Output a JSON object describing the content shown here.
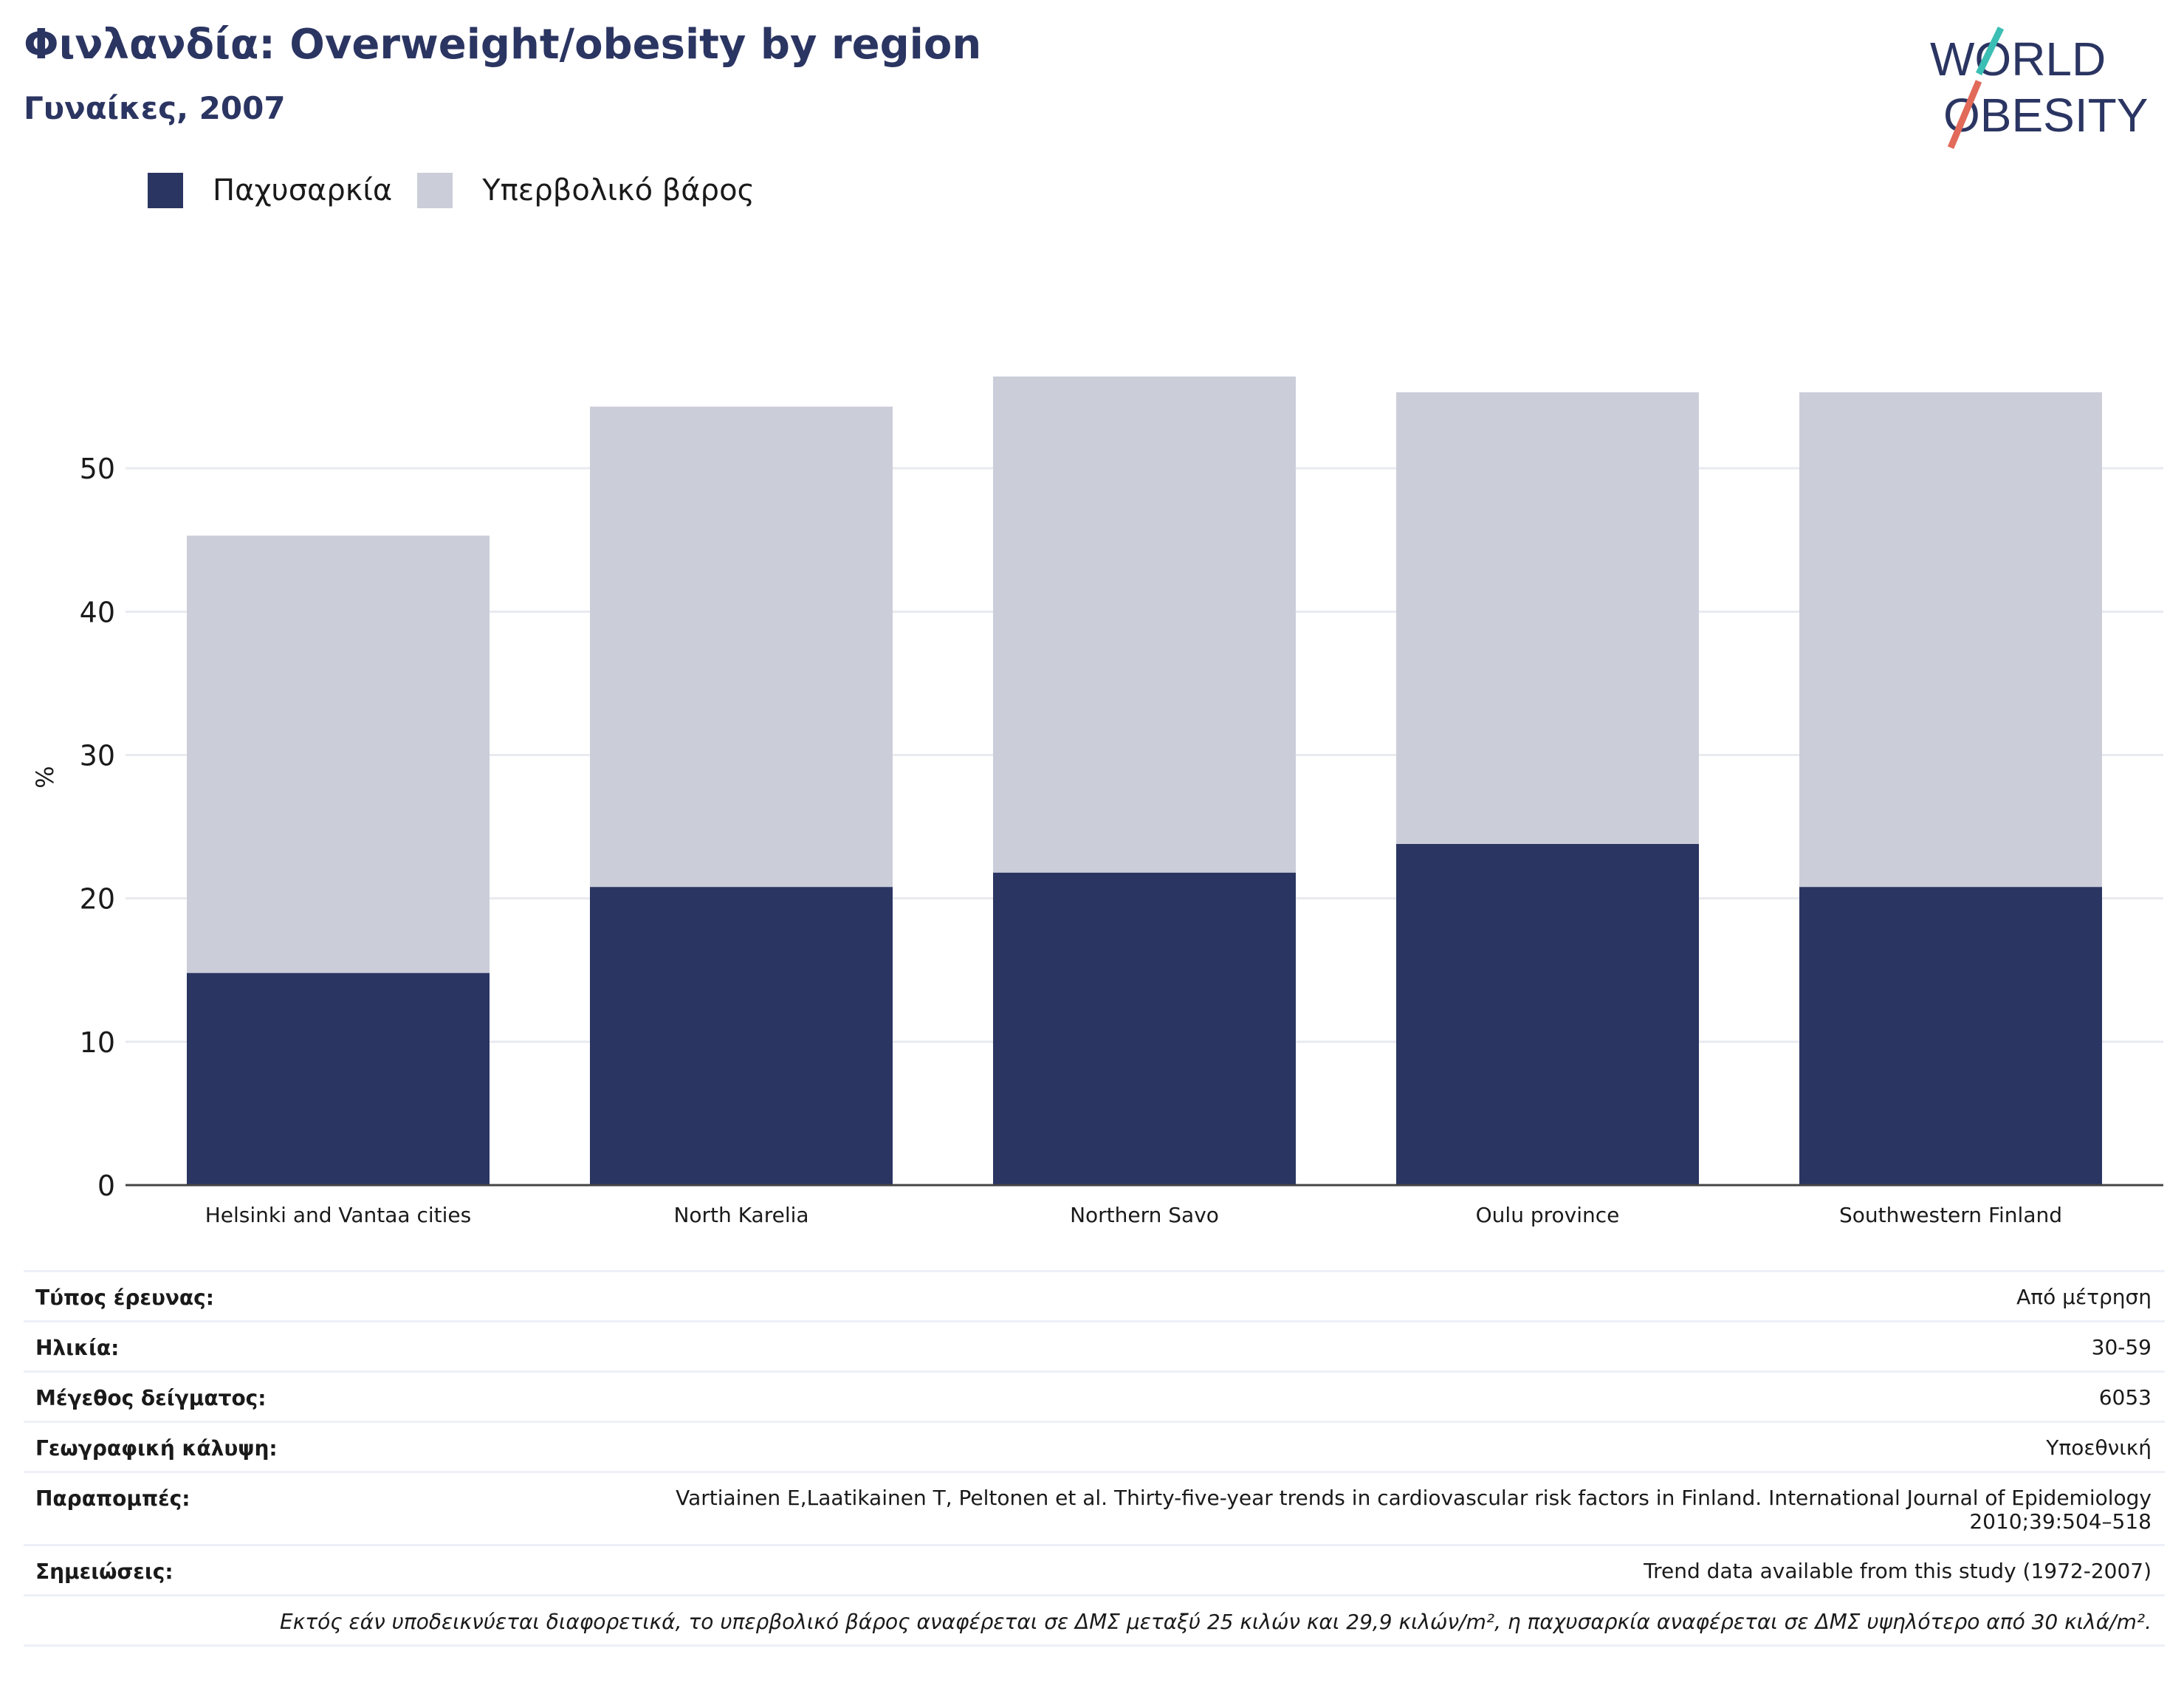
{
  "header": {
    "title": "Φινλανδία: Overweight/obesity by region",
    "subtitle": "Γυναίκες, 2007"
  },
  "logo": {
    "line1": "WORLD",
    "line2": "OBESITY"
  },
  "colors": {
    "obesity": "#2b3562",
    "overweight": "#cbcdd9",
    "title": "#2b3562"
  },
  "chart_data": {
    "type": "bar",
    "stacked": true,
    "categories": [
      "Helsinki and Vantaa cities",
      "North Karelia",
      "Northern Savo",
      "Oulu province",
      "Southwestern Finland"
    ],
    "series": [
      {
        "name": "Παχυσαρκία",
        "values": [
          14.8,
          20.8,
          21.8,
          23.8,
          20.8
        ]
      },
      {
        "name": "Υπερβολικό βάρος",
        "values": [
          30.5,
          33.5,
          34.6,
          31.5,
          34.5
        ]
      }
    ],
    "ylabel": "%",
    "ylim": [
      0,
      60
    ],
    "yticks": [
      0,
      10,
      20,
      30,
      40,
      50
    ],
    "grid": true,
    "legend": "top-left"
  },
  "metadata": {
    "rows": [
      {
        "key": "Τύπος έρευνας:",
        "value": "Από μέτρηση"
      },
      {
        "key": "Ηλικία:",
        "value": "30-59"
      },
      {
        "key": "Μέγεθος δείγματος:",
        "value": "6053"
      },
      {
        "key": "Γεωγραφική κάλυψη:",
        "value": "Υποεθνική"
      },
      {
        "key": "Παραπομπές:",
        "value": "Vartiainen E,Laatikainen T, Peltonen et al. Thirty-five-year trends in cardiovascular risk factors in Finland. International Journal of Epidemiology 2010;39:504–518"
      },
      {
        "key": "Σημειώσεις:",
        "value": "Trend data available from this study (1972-2007)"
      }
    ],
    "footnote": "Εκτός εάν υποδεικνύεται διαφορετικά, το υπερβολικό βάρος αναφέρεται σε ΔΜΣ μεταξύ 25 κιλών και 29,9 κιλών/m², η παχυσαρκία αναφέρεται σε ΔΜΣ υψηλότερο από 30 κιλά/m²."
  }
}
